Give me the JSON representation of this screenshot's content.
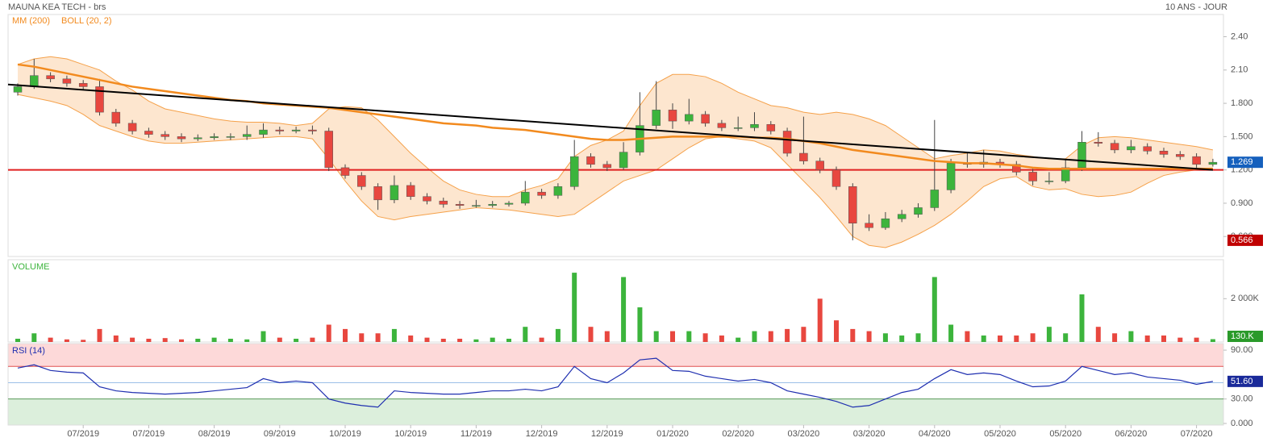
{
  "chart_data": {
    "type": "candlestick",
    "title": "MAUNA KEA TECH - brs",
    "subtitle": "10 ANS - JOUR",
    "legend": [
      "MM (200)",
      "BOLL (20, 2)"
    ],
    "up_color": "#3cb43c",
    "down_color": "#e8473f",
    "mm_color": "#f28a1e",
    "boll_color": "#f5a14a",
    "boll_fill": "#fde6cf",
    "trend_color": "#000000",
    "support_color": "#e02020",
    "xticks": [
      {
        "value": 4,
        "label": "07/2019"
      },
      {
        "value": 8,
        "label": "07/2019"
      },
      {
        "value": 12,
        "label": "08/2019"
      },
      {
        "value": 16,
        "label": "09/2019"
      },
      {
        "value": 20,
        "label": "10/2019"
      },
      {
        "value": 24,
        "label": "10/2019"
      },
      {
        "value": 28,
        "label": "11/2019"
      },
      {
        "value": 32,
        "label": "12/2019"
      },
      {
        "value": 36,
        "label": "12/2019"
      },
      {
        "value": 40,
        "label": "01/2020"
      },
      {
        "value": 44,
        "label": "02/2020"
      },
      {
        "value": 48,
        "label": "03/2020"
      },
      {
        "value": 52,
        "label": "03/2020"
      },
      {
        "value": 56,
        "label": "04/2020"
      },
      {
        "value": 60,
        "label": "05/2020"
      },
      {
        "value": 64,
        "label": "05/2020"
      },
      {
        "value": 68,
        "label": "06/2020"
      },
      {
        "value": 72,
        "label": "07/2020"
      }
    ],
    "ylim": [
      0.42,
      2.6
    ],
    "yticks": [
      {
        "value": 2.4,
        "label": "2.40"
      },
      {
        "value": 2.1,
        "label": "2.10"
      },
      {
        "value": 1.8,
        "label": "1.800"
      },
      {
        "value": 1.5,
        "label": "1.500"
      },
      {
        "value": 1.2,
        "label": "1.200"
      },
      {
        "value": 0.9,
        "label": "0.900"
      },
      {
        "value": 0.6,
        "label": "0.600"
      }
    ],
    "ohlc": [
      [
        1.9,
        1.98,
        1.87,
        1.95
      ],
      [
        1.95,
        2.2,
        1.93,
        2.05
      ],
      [
        2.05,
        2.08,
        1.99,
        2.02
      ],
      [
        2.02,
        2.05,
        1.95,
        1.98
      ],
      [
        1.98,
        2.01,
        1.92,
        1.95
      ],
      [
        1.95,
        2.02,
        1.69,
        1.72
      ],
      [
        1.72,
        1.75,
        1.59,
        1.62
      ],
      [
        1.62,
        1.65,
        1.52,
        1.55
      ],
      [
        1.55,
        1.58,
        1.49,
        1.52
      ],
      [
        1.52,
        1.55,
        1.47,
        1.5
      ],
      [
        1.5,
        1.53,
        1.45,
        1.48
      ],
      [
        1.48,
        1.52,
        1.46,
        1.49
      ],
      [
        1.49,
        1.53,
        1.47,
        1.5
      ],
      [
        1.5,
        1.53,
        1.47,
        1.5
      ],
      [
        1.5,
        1.6,
        1.47,
        1.52
      ],
      [
        1.52,
        1.62,
        1.49,
        1.56
      ],
      [
        1.56,
        1.59,
        1.52,
        1.55
      ],
      [
        1.55,
        1.59,
        1.53,
        1.56
      ],
      [
        1.56,
        1.6,
        1.52,
        1.55
      ],
      [
        1.55,
        1.58,
        1.19,
        1.22
      ],
      [
        1.22,
        1.25,
        1.12,
        1.15
      ],
      [
        1.15,
        1.18,
        1.02,
        1.05
      ],
      [
        1.05,
        1.08,
        0.84,
        0.93
      ],
      [
        0.93,
        1.15,
        0.9,
        1.06
      ],
      [
        1.06,
        1.09,
        0.93,
        0.96
      ],
      [
        0.96,
        0.99,
        0.89,
        0.92
      ],
      [
        0.92,
        0.95,
        0.86,
        0.89
      ],
      [
        0.89,
        0.92,
        0.85,
        0.88
      ],
      [
        0.88,
        0.93,
        0.86,
        0.88
      ],
      [
        0.88,
        0.92,
        0.86,
        0.89
      ],
      [
        0.89,
        0.92,
        0.87,
        0.9
      ],
      [
        0.9,
        1.1,
        0.88,
        1.0
      ],
      [
        1.0,
        1.03,
        0.94,
        0.97
      ],
      [
        0.97,
        1.08,
        0.94,
        1.05
      ],
      [
        1.05,
        1.47,
        1.02,
        1.32
      ],
      [
        1.32,
        1.35,
        1.22,
        1.25
      ],
      [
        1.25,
        1.28,
        1.19,
        1.22
      ],
      [
        1.22,
        1.45,
        1.2,
        1.36
      ],
      [
        1.36,
        1.9,
        1.33,
        1.6
      ],
      [
        1.6,
        2.0,
        1.57,
        1.74
      ],
      [
        1.74,
        1.8,
        1.57,
        1.64
      ],
      [
        1.64,
        1.84,
        1.61,
        1.7
      ],
      [
        1.7,
        1.73,
        1.59,
        1.62
      ],
      [
        1.62,
        1.65,
        1.55,
        1.58
      ],
      [
        1.58,
        1.68,
        1.55,
        1.58
      ],
      [
        1.58,
        1.72,
        1.55,
        1.61
      ],
      [
        1.61,
        1.64,
        1.52,
        1.55
      ],
      [
        1.55,
        1.58,
        1.32,
        1.35
      ],
      [
        1.35,
        1.68,
        1.25,
        1.28
      ],
      [
        1.28,
        1.31,
        1.17,
        1.2
      ],
      [
        1.2,
        1.23,
        1.02,
        1.05
      ],
      [
        1.05,
        1.08,
        0.566,
        0.72
      ],
      [
        0.72,
        0.8,
        0.65,
        0.68
      ],
      [
        0.68,
        0.82,
        0.66,
        0.76
      ],
      [
        0.76,
        0.84,
        0.73,
        0.8
      ],
      [
        0.8,
        0.9,
        0.77,
        0.86
      ],
      [
        0.86,
        1.65,
        0.83,
        1.02
      ],
      [
        1.02,
        1.3,
        0.99,
        1.26
      ],
      [
        1.26,
        1.35,
        1.22,
        1.25
      ],
      [
        1.25,
        1.38,
        1.22,
        1.27
      ],
      [
        1.27,
        1.3,
        1.22,
        1.25
      ],
      [
        1.25,
        1.28,
        1.15,
        1.18
      ],
      [
        1.18,
        1.21,
        1.06,
        1.1
      ],
      [
        1.1,
        1.18,
        1.07,
        1.1
      ],
      [
        1.1,
        1.3,
        1.08,
        1.22
      ],
      [
        1.22,
        1.55,
        1.19,
        1.45
      ],
      [
        1.45,
        1.54,
        1.41,
        1.44
      ],
      [
        1.44,
        1.47,
        1.35,
        1.38
      ],
      [
        1.38,
        1.47,
        1.35,
        1.41
      ],
      [
        1.41,
        1.44,
        1.34,
        1.37
      ],
      [
        1.37,
        1.4,
        1.31,
        1.34
      ],
      [
        1.34,
        1.37,
        1.29,
        1.32
      ],
      [
        1.32,
        1.35,
        1.22,
        1.25
      ],
      [
        1.25,
        1.3,
        1.23,
        1.269
      ]
    ],
    "mm200": [
      2.15,
      2.13,
      2.1,
      2.07,
      2.04,
      2.01,
      1.98,
      1.95,
      1.93,
      1.91,
      1.89,
      1.87,
      1.85,
      1.83,
      1.82,
      1.8,
      1.79,
      1.78,
      1.77,
      1.76,
      1.74,
      1.72,
      1.7,
      1.68,
      1.66,
      1.64,
      1.62,
      1.61,
      1.6,
      1.58,
      1.57,
      1.56,
      1.54,
      1.52,
      1.5,
      1.48,
      1.47,
      1.47,
      1.48,
      1.49,
      1.5,
      1.5,
      1.5,
      1.5,
      1.5,
      1.49,
      1.49,
      1.48,
      1.46,
      1.44,
      1.41,
      1.38,
      1.36,
      1.34,
      1.32,
      1.3,
      1.28,
      1.27,
      1.26,
      1.26,
      1.25,
      1.24,
      1.22,
      1.21,
      1.21,
      1.21,
      1.21,
      1.21,
      1.21,
      1.21,
      1.21,
      1.21,
      1.21,
      1.21
    ],
    "boll_upper": [
      2.15,
      2.2,
      2.22,
      2.2,
      2.15,
      2.1,
      2.0,
      1.92,
      1.82,
      1.75,
      1.72,
      1.69,
      1.66,
      1.64,
      1.63,
      1.63,
      1.62,
      1.6,
      1.62,
      1.75,
      1.77,
      1.76,
      1.65,
      1.5,
      1.35,
      1.22,
      1.1,
      1.02,
      0.98,
      0.96,
      0.96,
      1.02,
      1.06,
      1.12,
      1.32,
      1.42,
      1.47,
      1.55,
      1.78,
      1.98,
      2.06,
      2.06,
      2.04,
      1.98,
      1.9,
      1.84,
      1.78,
      1.76,
      1.72,
      1.7,
      1.72,
      1.7,
      1.66,
      1.6,
      1.5,
      1.4,
      1.3,
      1.33,
      1.35,
      1.38,
      1.37,
      1.34,
      1.32,
      1.3,
      1.3,
      1.42,
      1.49,
      1.5,
      1.49,
      1.47,
      1.45,
      1.43,
      1.41,
      1.38
    ],
    "boll_lower": [
      1.88,
      1.85,
      1.82,
      1.78,
      1.7,
      1.6,
      1.55,
      1.5,
      1.46,
      1.44,
      1.44,
      1.45,
      1.46,
      1.47,
      1.48,
      1.49,
      1.5,
      1.5,
      1.48,
      1.3,
      1.1,
      0.92,
      0.78,
      0.75,
      0.78,
      0.8,
      0.82,
      0.84,
      0.86,
      0.85,
      0.84,
      0.82,
      0.8,
      0.78,
      0.8,
      0.9,
      1.0,
      1.1,
      1.15,
      1.2,
      1.3,
      1.4,
      1.48,
      1.5,
      1.48,
      1.46,
      1.4,
      1.25,
      1.1,
      0.95,
      0.78,
      0.6,
      0.52,
      0.5,
      0.55,
      0.62,
      0.7,
      0.8,
      0.92,
      1.05,
      1.12,
      1.14,
      1.05,
      1.02,
      1.03,
      0.98,
      0.96,
      0.97,
      1.0,
      1.08,
      1.15,
      1.18,
      1.2,
      1.2
    ],
    "trendline": [
      1.97,
      1.2
    ],
    "support": 1.2,
    "volume": {
      "label": "VOLUME",
      "ylim": [
        0,
        3800
      ],
      "yticks": [
        {
          "value": 2000,
          "label": "2 000K"
        }
      ],
      "values": [
        150,
        400,
        200,
        120,
        100,
        600,
        300,
        200,
        150,
        180,
        120,
        150,
        200,
        150,
        120,
        500,
        200,
        150,
        200,
        800,
        600,
        400,
        400,
        600,
        300,
        200,
        150,
        150,
        120,
        200,
        150,
        700,
        200,
        600,
        3200,
        700,
        500,
        3000,
        1600,
        500,
        500,
        500,
        400,
        300,
        200,
        500,
        500,
        600,
        700,
        2000,
        1000,
        600,
        500,
        400,
        300,
        400,
        3000,
        800,
        500,
        300,
        300,
        300,
        400,
        700,
        400,
        2200,
        700,
        400,
        500,
        300,
        300,
        200,
        200,
        130
      ],
      "last_label": "130.K"
    },
    "rsi": {
      "label": "RSI (14)",
      "ylim": [
        -2,
        98
      ],
      "yticks": [
        {
          "value": 90,
          "label": "90.00"
        },
        {
          "value": 30,
          "label": "30.00"
        },
        {
          "value": 0,
          "label": "0.000"
        }
      ],
      "overbought": 70,
      "mid": 50,
      "oversold": 30,
      "color": "#1f2fb0",
      "values": [
        68,
        72,
        65,
        63,
        62,
        45,
        40,
        38,
        37,
        36,
        37,
        38,
        40,
        42,
        44,
        55,
        50,
        52,
        50,
        30,
        25,
        22,
        20,
        40,
        38,
        37,
        36,
        36,
        38,
        40,
        40,
        42,
        40,
        45,
        70,
        55,
        50,
        62,
        78,
        80,
        65,
        64,
        58,
        55,
        52,
        54,
        50,
        40,
        36,
        32,
        27,
        20,
        22,
        30,
        38,
        42,
        55,
        66,
        60,
        62,
        60,
        52,
        45,
        46,
        52,
        70,
        65,
        60,
        62,
        57,
        55,
        53,
        48,
        51.6
      ],
      "last_label": "51.60"
    }
  }
}
